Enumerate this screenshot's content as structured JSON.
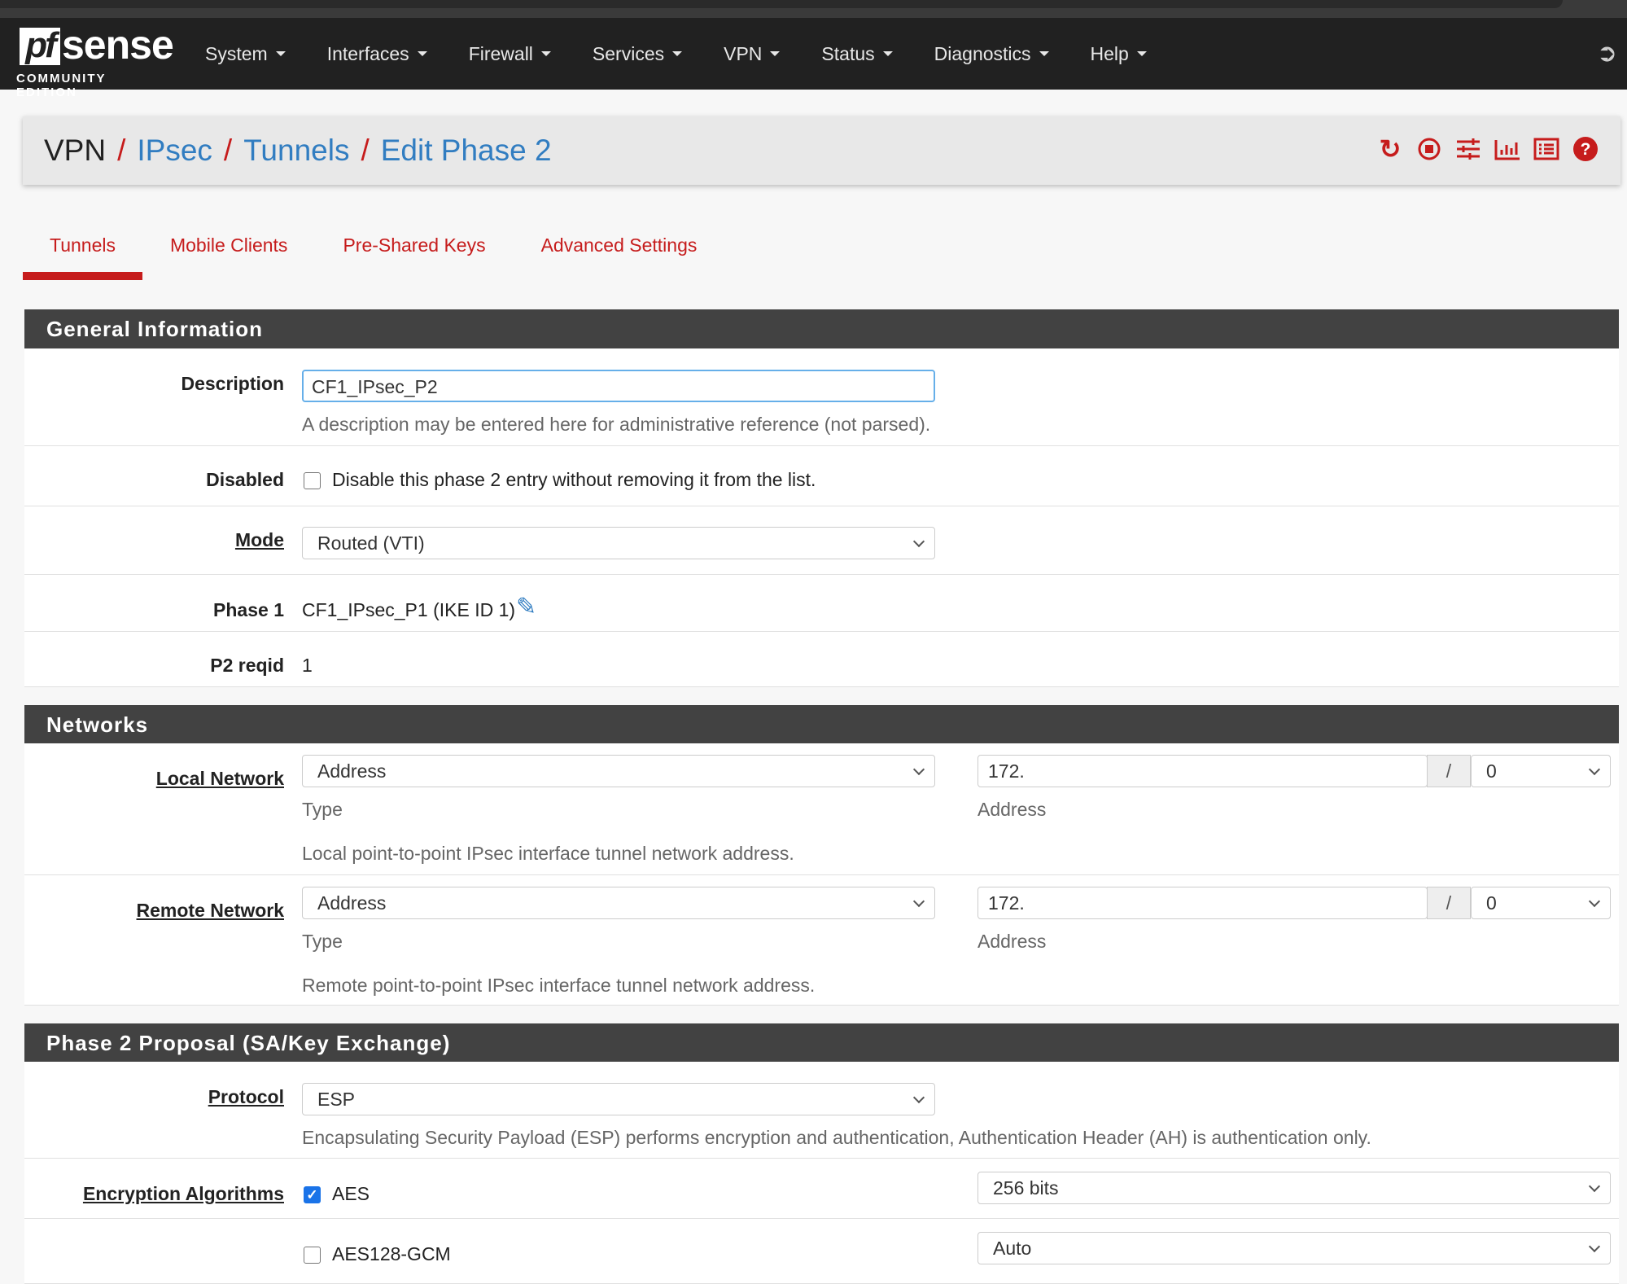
{
  "app": {
    "logo": "pfsense",
    "logo_sub": "COMMUNITY EDITION"
  },
  "nav": [
    "System",
    "Interfaces",
    "Firewall",
    "Services",
    "VPN",
    "Status",
    "Diagnostics",
    "Help"
  ],
  "breadcrumb": {
    "root": "VPN",
    "items": [
      "IPsec",
      "Tunnels",
      "Edit Phase 2"
    ]
  },
  "header_icons": [
    "restart-icon",
    "stop-icon",
    "sliders-icon",
    "bar-chart-icon",
    "list-icon",
    "help-icon"
  ],
  "tabs": [
    "Tunnels",
    "Mobile Clients",
    "Pre-Shared Keys",
    "Advanced Settings"
  ],
  "general": {
    "title": "General Information",
    "description_label": "Description",
    "description_value": "CF1_IPsec_P2",
    "description_help": "A description may be entered here for administrative reference (not parsed).",
    "disabled_label": "Disabled",
    "disabled_text": "Disable this phase 2 entry without removing it from the list.",
    "disabled_checked": false,
    "mode_label": "Mode",
    "mode_value": "Routed (VTI)",
    "phase1_label": "Phase 1",
    "phase1_value": "CF1_IPsec_P1 (IKE ID 1)",
    "reqid_label": "P2 reqid",
    "reqid_value": "1"
  },
  "networks": {
    "title": "Networks",
    "local": {
      "label": "Local Network",
      "type": "Address",
      "type_label": "Type",
      "address": "172.",
      "address_label": "Address",
      "slash": "/",
      "prefix": "0",
      "help": "Local point-to-point IPsec interface tunnel network address."
    },
    "remote": {
      "label": "Remote Network",
      "type": "Address",
      "type_label": "Type",
      "address": "172.",
      "address_label": "Address",
      "slash": "/",
      "prefix": "0",
      "help": "Remote point-to-point IPsec interface tunnel network address."
    }
  },
  "proposal": {
    "title": "Phase 2 Proposal (SA/Key Exchange)",
    "protocol_label": "Protocol",
    "protocol_value": "ESP",
    "protocol_help": "Encapsulating Security Payload (ESP) performs encryption and authentication, Authentication Header (AH) is authentication only.",
    "enc_label": "Encryption Algorithms",
    "algos": [
      {
        "name": "AES",
        "checked": true,
        "keylen": "256 bits"
      },
      {
        "name": "AES128-GCM",
        "checked": false,
        "keylen": "Auto"
      }
    ]
  },
  "colors": {
    "accent": "#c61c1c",
    "link": "#317dc1",
    "navbar": "#212121",
    "panel_header": "#424242"
  }
}
